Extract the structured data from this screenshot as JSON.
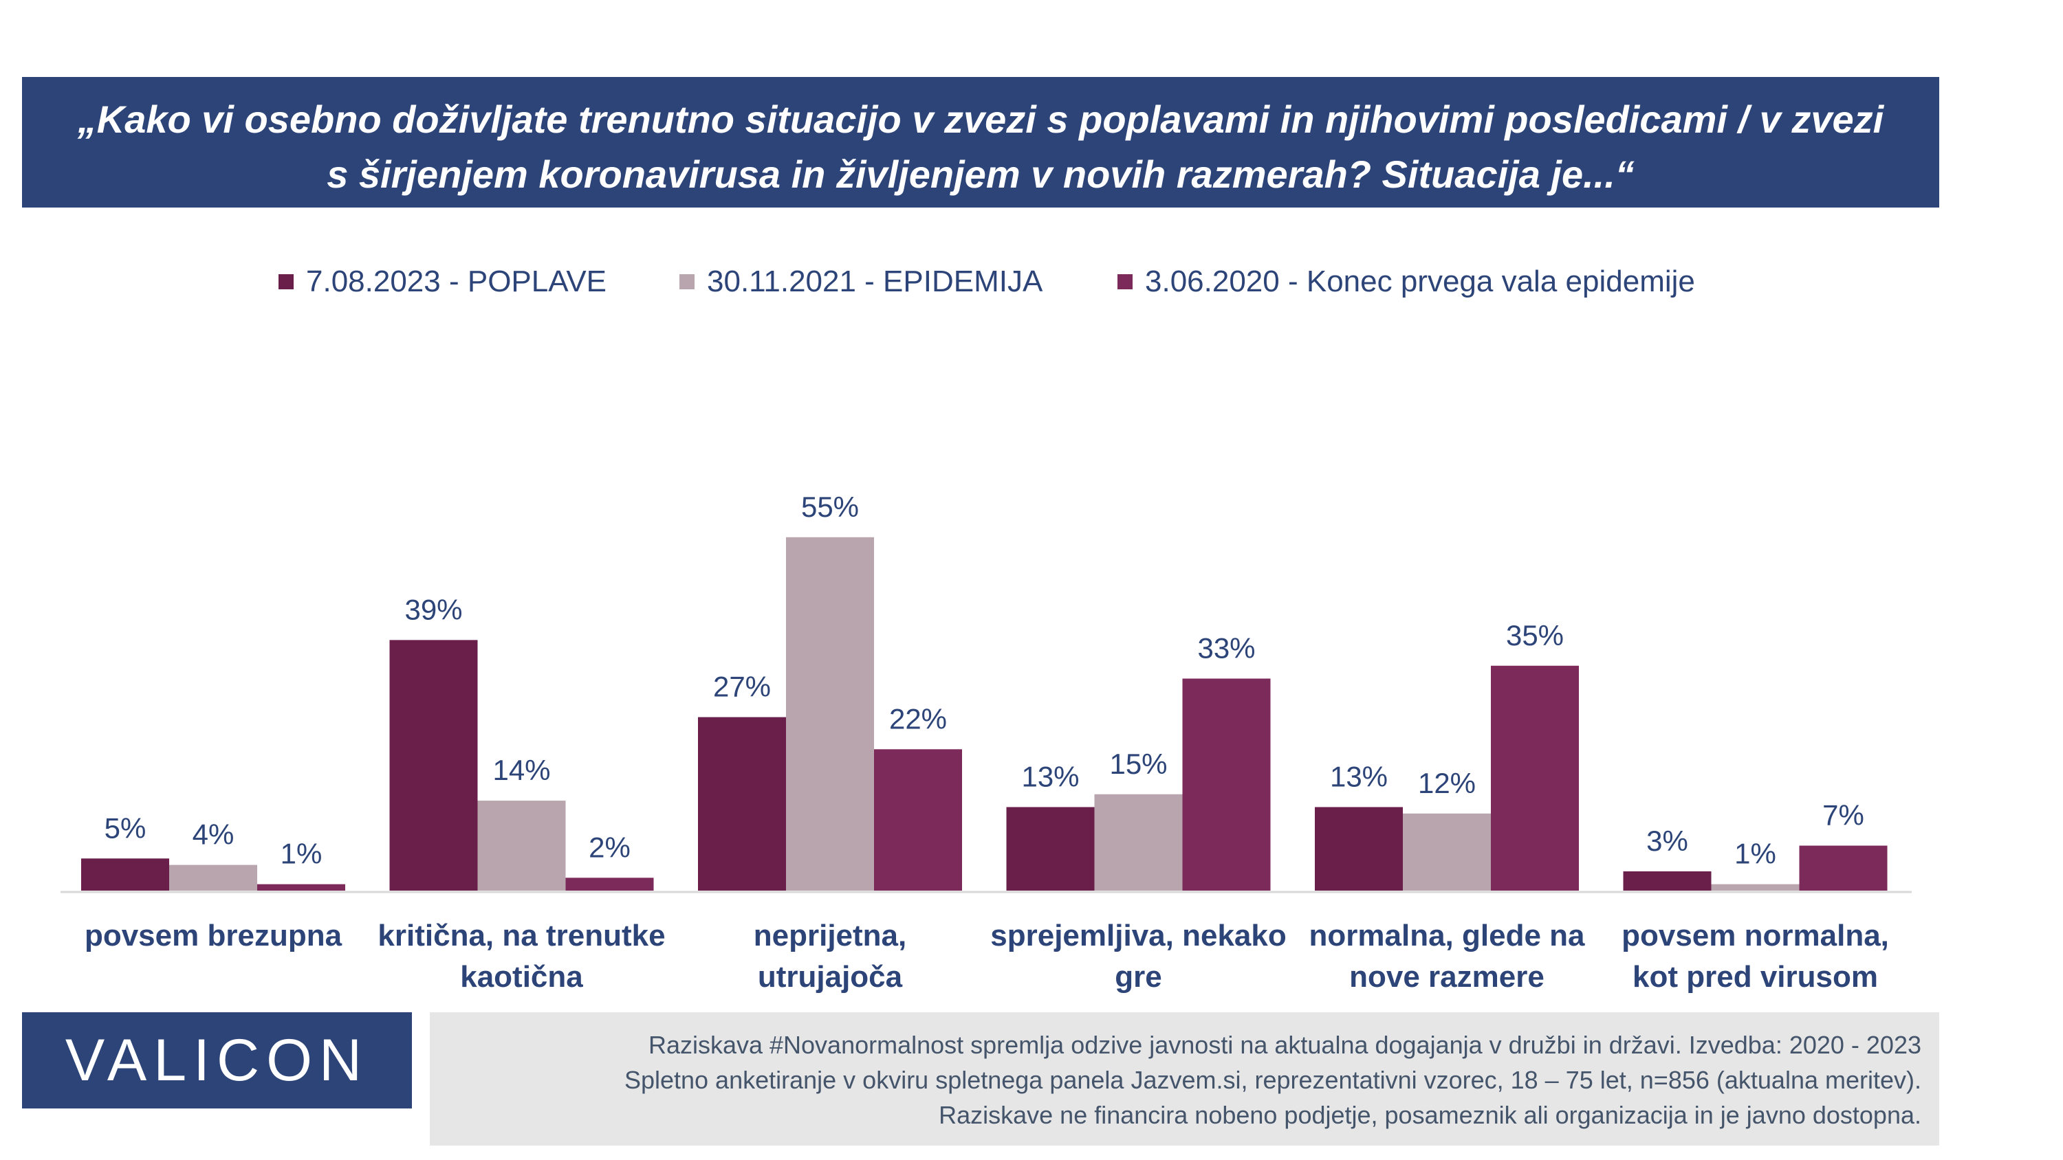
{
  "title_lines": [
    "„Kako vi osebno doživljate trenutno situacijo v zvezi s poplavami in njihovimi posledicami / v zvezi",
    "s širjenjem koronavirusa in življenjem v novih razmerah? Situacija je...“"
  ],
  "chart_data": {
    "type": "bar",
    "categories": [
      [
        "povsem brezupna"
      ],
      [
        "kritična, na trenutke",
        "kaotična"
      ],
      [
        "neprijetna,",
        "utrujajoča"
      ],
      [
        "sprejemljiva, nekako",
        "gre"
      ],
      [
        "normalna, glede na",
        "nove razmere"
      ],
      [
        "povsem normalna,",
        "kot pred virusom"
      ]
    ],
    "series": [
      {
        "name": "7.08.2023 - POPLAVE",
        "color": "#6a1f4b",
        "values": [
          5,
          39,
          27,
          13,
          13,
          3
        ],
        "labels": [
          "5%",
          "39%",
          "27%",
          "13%",
          "13%",
          "3%"
        ]
      },
      {
        "name": "30.11.2021 - EPIDEMIJA",
        "color": "#b9a5ad",
        "values": [
          4,
          14,
          55,
          15,
          12,
          1
        ],
        "labels": [
          "4%",
          "14%",
          "55%",
          "15%",
          "12%",
          "1%"
        ]
      },
      {
        "name": "3.06.2020 - Konec prvega vala epidemije",
        "color": "#7c2a5a",
        "values": [
          1,
          2,
          22,
          33,
          35,
          7
        ],
        "labels": [
          "1%",
          "2%",
          "22%",
          "33%",
          "35%",
          "7%"
        ]
      }
    ],
    "ylim": [
      0,
      60
    ],
    "value_unit": "%",
    "legend_position": "top",
    "grid": false,
    "label_color": "#2c4478"
  },
  "logo": "VALICON",
  "footer_lines": [
    "Raziskava #Novanormalnost spremlja odzive javnosti na aktualna dogajanja v družbi in državi. Izvedba: 2020 - 2023",
    "Spletno anketiranje v okviru spletnega panela Jazvem.si, reprezentativni vzorec, 18 – 75 let, n=856 (aktualna meritev).",
    "Raziskave ne financira nobeno podjetje, posameznik ali organizacija in je javno dostopna."
  ]
}
